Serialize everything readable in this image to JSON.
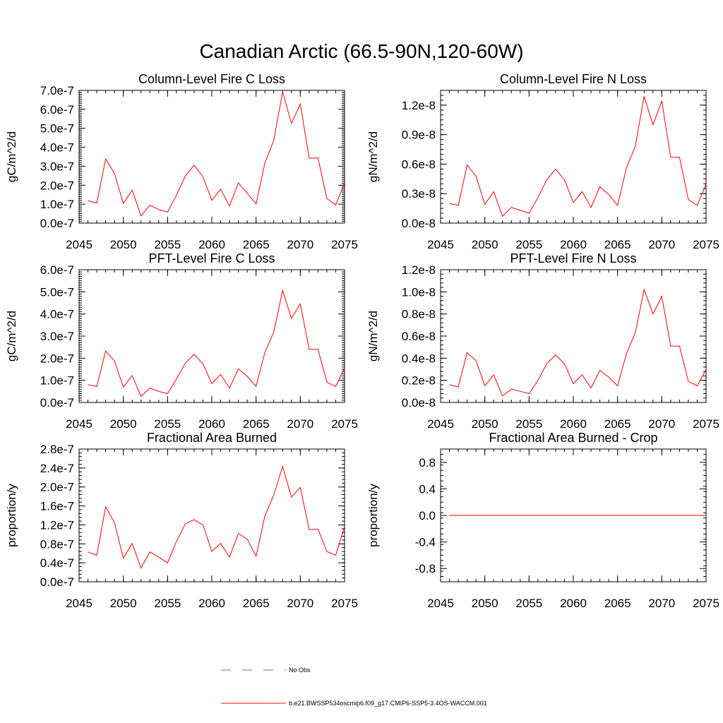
{
  "figure": {
    "title": "Canadian Arctic (66.5-90N,120-60W)",
    "series_color": "#ff0000",
    "obs_color": "#6a6ad0",
    "legend": {
      "obs_label": "No Obs",
      "model_label": "b.e21.BWSSP534oscmip6.f09_g17.CMIP6-SSP5-3.4OS-WACCM.001"
    }
  },
  "chart_data": [
    {
      "type": "line",
      "title": "Column-Level Fire C Loss",
      "ylabel": "gC/m^2/d",
      "xlim": [
        2045,
        2075
      ],
      "ylim": [
        0,
        7e-07
      ],
      "xticks": [
        2045,
        2050,
        2055,
        2060,
        2065,
        2070,
        2075
      ],
      "xtick_labels": [
        "2045",
        "2050",
        "2055",
        "2060",
        "2065",
        "2070",
        "2075"
      ],
      "yticks": [
        0,
        1e-07,
        2e-07,
        3e-07,
        4e-07,
        5e-07,
        6e-07,
        7e-07
      ],
      "ytick_labels": [
        "0.0e-7",
        "1.0e-7",
        "2.0e-7",
        "3.0e-7",
        "4.0e-7",
        "5.0e-7",
        "6.0e-7",
        "7.0e-7"
      ],
      "y_minor": 1e-08,
      "x": [
        2046,
        2047,
        2048,
        2049,
        2050,
        2051,
        2052,
        2053,
        2054,
        2055,
        2056,
        2057,
        2058,
        2059,
        2060,
        2061,
        2062,
        2063,
        2064,
        2065,
        2066,
        2067,
        2068,
        2069,
        2070,
        2071,
        2072,
        2073,
        2074,
        2075
      ],
      "y": [
        1.18e-07,
        1.06e-07,
        3.38e-07,
        2.62e-07,
        1.03e-07,
        1.75e-07,
        3.8e-08,
        9.4e-08,
        7.2e-08,
        5.8e-08,
        1.48e-07,
        2.48e-07,
        3.06e-07,
        2.44e-07,
        1.2e-07,
        1.78e-07,
        9e-08,
        2.12e-07,
        1.58e-07,
        1.01e-07,
        3.18e-07,
        4.36e-07,
        6.92e-07,
        5.26e-07,
        6.28e-07,
        3.42e-07,
        3.44e-07,
        1.3e-07,
        9.6e-08,
        2.12e-07
      ]
    },
    {
      "type": "line",
      "title": "Column-Level Fire N Loss",
      "ylabel": "gN/m^2/d",
      "xlim": [
        2045,
        2075
      ],
      "ylim": [
        0,
        1.35e-08
      ],
      "xticks": [
        2045,
        2050,
        2055,
        2060,
        2065,
        2070,
        2075
      ],
      "xtick_labels": [
        "2045",
        "2050",
        "2055",
        "2060",
        "2065",
        "2070",
        "2075"
      ],
      "yticks": [
        0,
        3e-09,
        6e-09,
        9e-09,
        1.2e-08
      ],
      "ytick_labels": [
        "0.0e-8",
        "0.3e-8",
        "0.6e-8",
        "0.9e-8",
        "1.2e-8"
      ],
      "y_minor": 5e-10,
      "x": [
        2046,
        2047,
        2048,
        2049,
        2050,
        2051,
        2052,
        2053,
        2054,
        2055,
        2056,
        2057,
        2058,
        2059,
        2060,
        2061,
        2062,
        2063,
        2064,
        2065,
        2066,
        2067,
        2068,
        2069,
        2070,
        2071,
        2072,
        2073,
        2074,
        2075
      ],
      "y": [
        2e-09,
        1.8e-09,
        5.9e-09,
        4.8e-09,
        1.9e-09,
        3.2e-09,
        7e-10,
        1.6e-09,
        1.3e-09,
        1e-09,
        2.6e-09,
        4.4e-09,
        5.5e-09,
        4.4e-09,
        2.1e-09,
        3.2e-09,
        1.6e-09,
        3.7e-09,
        2.9e-09,
        1.8e-09,
        5.6e-09,
        7.8e-09,
        1.29e-08,
        1e-08,
        1.24e-08,
        6.7e-09,
        6.7e-09,
        2.4e-09,
        1.8e-09,
        4e-09
      ]
    },
    {
      "type": "line",
      "title": "PFT-Level Fire C Loss",
      "ylabel": "gC/m^2/d",
      "xlim": [
        2045,
        2075
      ],
      "ylim": [
        0,
        6e-07
      ],
      "xticks": [
        2045,
        2050,
        2055,
        2060,
        2065,
        2070,
        2075
      ],
      "xtick_labels": [
        "2045",
        "2050",
        "2055",
        "2060",
        "2065",
        "2070",
        "2075"
      ],
      "yticks": [
        0,
        1e-07,
        2e-07,
        3e-07,
        4e-07,
        5e-07,
        6e-07
      ],
      "ytick_labels": [
        "0.0e-7",
        "1.0e-7",
        "2.0e-7",
        "3.0e-7",
        "4.0e-7",
        "5.0e-7",
        "6.0e-7"
      ],
      "y_minor": 1e-08,
      "x": [
        2046,
        2047,
        2048,
        2049,
        2050,
        2051,
        2052,
        2053,
        2054,
        2055,
        2056,
        2057,
        2058,
        2059,
        2060,
        2061,
        2062,
        2063,
        2064,
        2065,
        2066,
        2067,
        2068,
        2069,
        2070,
        2071,
        2072,
        2073,
        2074,
        2075
      ],
      "y": [
        8e-08,
        7.2e-08,
        2.33e-07,
        1.88e-07,
        7e-08,
        1.22e-07,
        2.7e-08,
        6.5e-08,
        5e-08,
        4e-08,
        1.06e-07,
        1.77e-07,
        2.18e-07,
        1.74e-07,
        8.6e-08,
        1.26e-07,
        6.5e-08,
        1.52e-07,
        1.18e-07,
        7.3e-08,
        2.27e-07,
        3.18e-07,
        5.06e-07,
        3.8e-07,
        4.46e-07,
        2.4e-07,
        2.4e-07,
        9.2e-08,
        7.2e-08,
        1.56e-07
      ]
    },
    {
      "type": "line",
      "title": "PFT-Level Fire N Loss",
      "ylabel": "gN/m^2/d",
      "xlim": [
        2045,
        2075
      ],
      "ylim": [
        0,
        1.2e-08
      ],
      "xticks": [
        2045,
        2050,
        2055,
        2060,
        2065,
        2070,
        2075
      ],
      "xtick_labels": [
        "2045",
        "2050",
        "2055",
        "2060",
        "2065",
        "2070",
        "2075"
      ],
      "yticks": [
        0,
        2e-09,
        4e-09,
        6e-09,
        8e-09,
        1e-08,
        1.2e-08
      ],
      "ytick_labels": [
        "0.0e-8",
        "0.2e-8",
        "0.4e-8",
        "0.6e-8",
        "0.8e-8",
        "1.0e-8",
        "1.2e-8"
      ],
      "y_minor": 4e-10,
      "x": [
        2046,
        2047,
        2048,
        2049,
        2050,
        2051,
        2052,
        2053,
        2054,
        2055,
        2056,
        2057,
        2058,
        2059,
        2060,
        2061,
        2062,
        2063,
        2064,
        2065,
        2066,
        2067,
        2068,
        2069,
        2070,
        2071,
        2072,
        2073,
        2074,
        2075
      ],
      "y": [
        1.6e-09,
        1.4e-09,
        4.5e-09,
        3.8e-09,
        1.5e-09,
        2.5e-09,
        6e-10,
        1.2e-09,
        1e-09,
        8e-10,
        2e-09,
        3.5e-09,
        4.3e-09,
        3.5e-09,
        1.7e-09,
        2.5e-09,
        1.3e-09,
        2.9e-09,
        2.3e-09,
        1.5e-09,
        4.4e-09,
        6.3e-09,
        1.02e-08,
        8e-09,
        9.6e-09,
        5.1e-09,
        5.1e-09,
        1.9e-09,
        1.5e-09,
        3e-09
      ]
    },
    {
      "type": "line",
      "title": "Fractional Area Burned",
      "ylabel": "proportion/y",
      "xlim": [
        2045,
        2075
      ],
      "ylim": [
        0,
        2.8e-07
      ],
      "xticks": [
        2045,
        2050,
        2055,
        2060,
        2065,
        2070,
        2075
      ],
      "xtick_labels": [
        "2045",
        "2050",
        "2055",
        "2060",
        "2065",
        "2070",
        "2075"
      ],
      "yticks": [
        0,
        4e-08,
        8e-08,
        1.2e-07,
        1.6e-07,
        2e-07,
        2.4e-07,
        2.8e-07
      ],
      "ytick_labels": [
        "0.0e-7",
        "0.4e-7",
        "0.8e-7",
        "1.2e-7",
        "1.6e-7",
        "2.0e-7",
        "2.4e-7",
        "2.8e-7"
      ],
      "y_minor": 8e-09,
      "x": [
        2046,
        2047,
        2048,
        2049,
        2050,
        2051,
        2052,
        2053,
        2054,
        2055,
        2056,
        2057,
        2058,
        2059,
        2060,
        2061,
        2062,
        2063,
        2064,
        2065,
        2066,
        2067,
        2068,
        2069,
        2070,
        2071,
        2072,
        2073,
        2074,
        2075
      ],
      "y": [
        6.3e-08,
        5.6e-08,
        1.58e-07,
        1.25e-07,
        5e-08,
        8.1e-08,
        2.9e-08,
        6.3e-08,
        5.2e-08,
        4e-08,
        8.5e-08,
        1.22e-07,
        1.31e-07,
        1.2e-07,
        6.4e-08,
        8.1e-08,
        5.2e-08,
        1.02e-07,
        9e-08,
        5.4e-08,
        1.39e-07,
        1.83e-07,
        2.43e-07,
        1.79e-07,
        1.99e-07,
        1.1e-07,
        1.11e-07,
        6.4e-08,
        5.6e-08,
        1.17e-07
      ]
    },
    {
      "type": "line",
      "title": "Fractional Area Burned - Crop",
      "ylabel": "proportion/y",
      "xlim": [
        2045,
        2075
      ],
      "ylim": [
        -1.0,
        1.0
      ],
      "xticks": [
        2045,
        2050,
        2055,
        2060,
        2065,
        2070,
        2075
      ],
      "xtick_labels": [
        "2045",
        "2050",
        "2055",
        "2060",
        "2065",
        "2070",
        "2075"
      ],
      "yticks": [
        -0.8,
        -0.4,
        0.0,
        0.4,
        0.8
      ],
      "ytick_labels": [
        "-0.8",
        "-0.4",
        "0.0",
        "0.4",
        "0.8"
      ],
      "y_minor": 0.08,
      "x": [
        2046,
        2047,
        2048,
        2049,
        2050,
        2051,
        2052,
        2053,
        2054,
        2055,
        2056,
        2057,
        2058,
        2059,
        2060,
        2061,
        2062,
        2063,
        2064,
        2065,
        2066,
        2067,
        2068,
        2069,
        2070,
        2071,
        2072,
        2073,
        2074,
        2075
      ],
      "y": [
        0,
        0,
        0,
        0,
        0,
        0,
        0,
        0,
        0,
        0,
        0,
        0,
        0,
        0,
        0,
        0,
        0,
        0,
        0,
        0,
        0,
        0,
        0,
        0,
        0,
        0,
        0,
        0,
        0,
        0
      ]
    }
  ]
}
